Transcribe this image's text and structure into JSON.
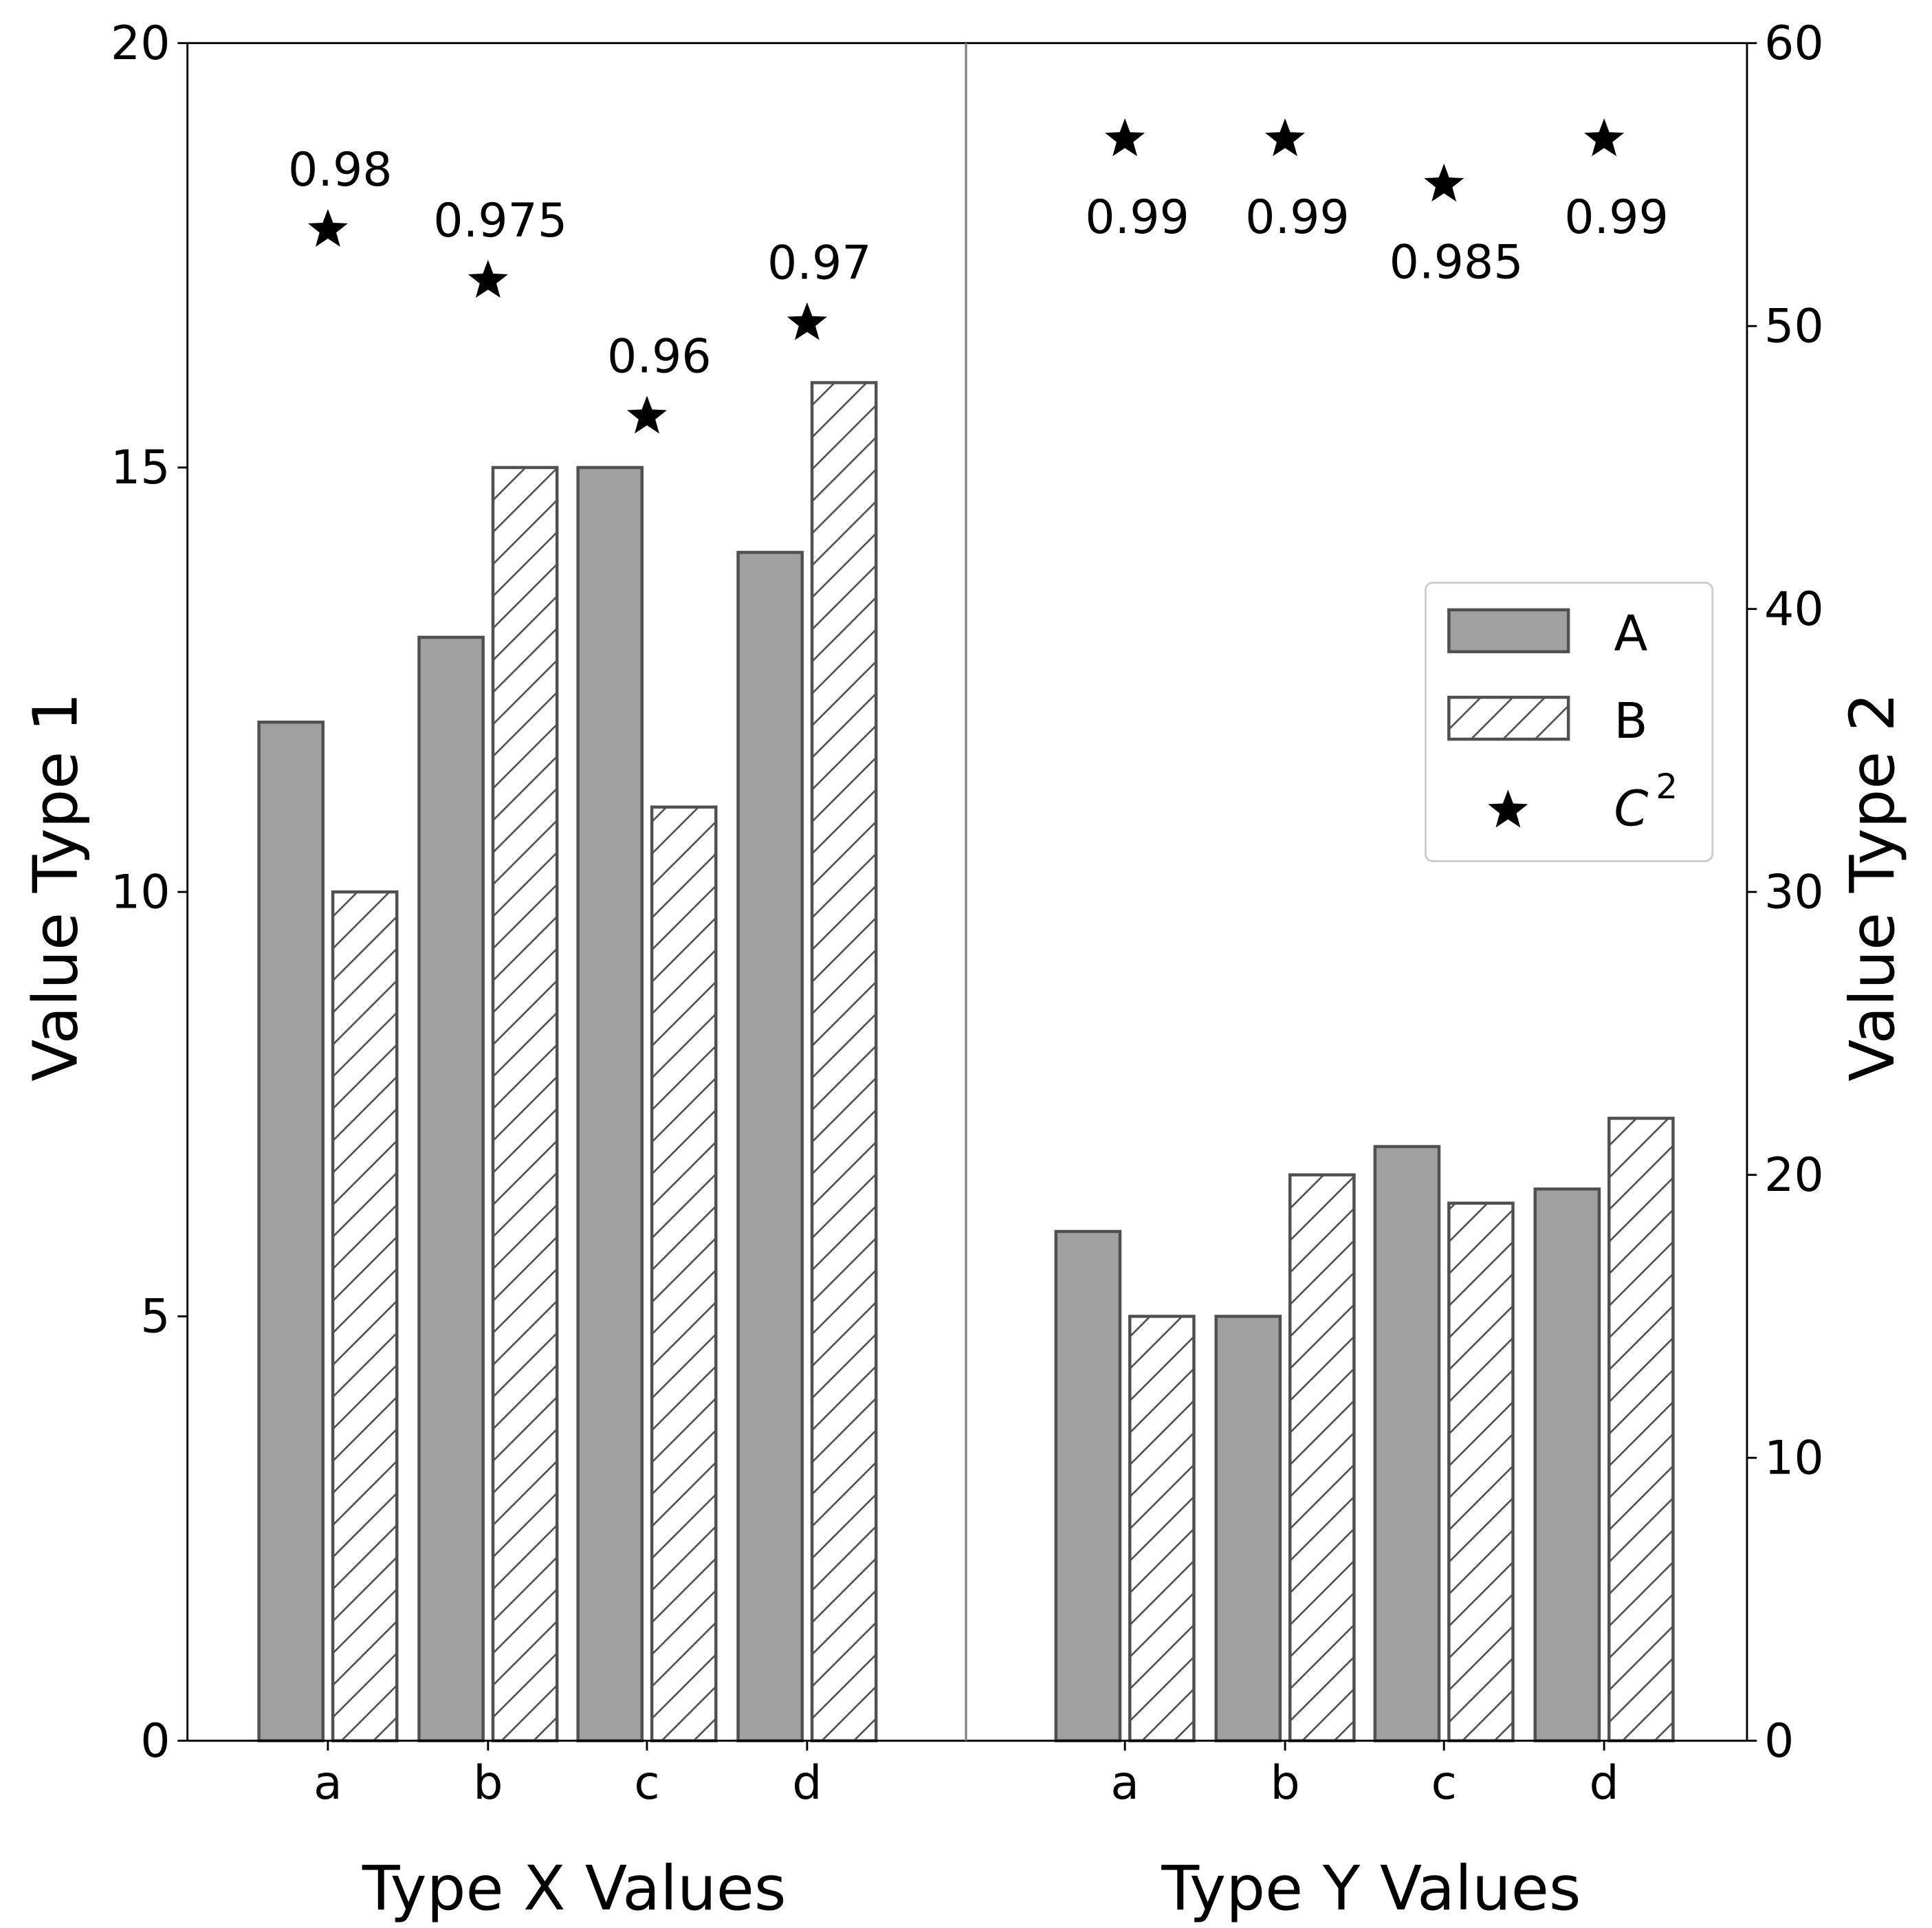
{
  "chart_data": [
    {
      "type": "bar",
      "xlabel": "Type X Values",
      "ylabel": "Value Type 1",
      "ylim": [
        0,
        20
      ],
      "yticks": [
        "0",
        "5",
        "10",
        "15",
        "20"
      ],
      "y_axis_side": "left",
      "categories": [
        "a",
        "b",
        "c",
        "d"
      ],
      "series": [
        {
          "name": "A",
          "values": [
            12,
            13,
            15,
            14
          ],
          "style": "solid",
          "color": "#a0a0a0"
        },
        {
          "name": "B",
          "values": [
            10,
            15,
            11,
            16
          ],
          "style": "hatched",
          "color": "#ffffff"
        }
      ],
      "markers": {
        "name": "C^2",
        "marker": "star",
        "y": [
          17.8,
          17.2,
          15.6,
          16.7
        ],
        "labels": [
          "0.98",
          "0.975",
          "0.96",
          "0.97"
        ],
        "label_position": "above"
      }
    },
    {
      "type": "bar",
      "xlabel": "Type Y Values",
      "ylabel": "Value Type 2",
      "ylim": [
        0,
        60
      ],
      "yticks": [
        "0",
        "10",
        "20",
        "30",
        "40",
        "50",
        "60"
      ],
      "y_axis_side": "right",
      "categories": [
        "a",
        "b",
        "c",
        "d"
      ],
      "series": [
        {
          "name": "A",
          "values": [
            18,
            15,
            21,
            19.5
          ],
          "style": "solid",
          "color": "#a0a0a0"
        },
        {
          "name": "B",
          "values": [
            15,
            20,
            19,
            22
          ],
          "style": "hatched",
          "color": "#ffffff"
        }
      ],
      "markers": {
        "name": "C^2",
        "marker": "star",
        "y": [
          56.6,
          56.6,
          55,
          56.6
        ],
        "labels": [
          "0.99",
          "0.99",
          "0.985",
          "0.99"
        ],
        "label_position": "below"
      }
    }
  ],
  "legend": {
    "placement": "center-right",
    "items": [
      {
        "label": "A",
        "style": "solid"
      },
      {
        "label": "B",
        "style": "hatched"
      },
      {
        "label": "C",
        "superscript": "2",
        "style": "star"
      }
    ]
  },
  "colors": {
    "bar_fill": "#a0a0a0",
    "bar_edge": "#505050",
    "divider": "#808080"
  }
}
